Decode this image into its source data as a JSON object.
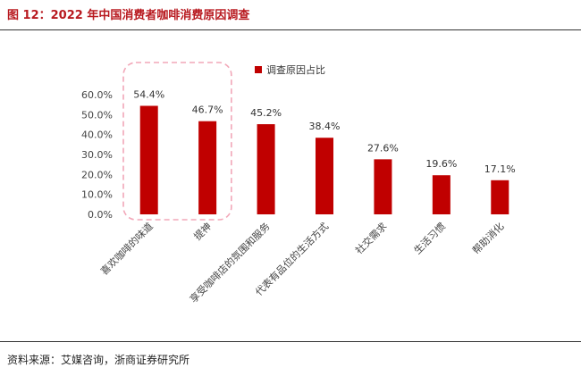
{
  "figure": {
    "title": "图 12：2022 年中国消费者咖啡消费原因调查",
    "source": "资料来源：艾媒咨询，浙商证券研究所"
  },
  "colors": {
    "bar": "#c00000",
    "title": "#b8191f",
    "highlight_box": "#f2a7b8"
  },
  "chart_data": {
    "type": "bar",
    "title": "",
    "xlabel": "",
    "ylabel": "",
    "categories": [
      "喜欢咖啡的味道",
      "提神",
      "享受咖啡店的氛围和服务",
      "代表有品位的生活方式",
      "社交需求",
      "生活习惯",
      "帮助消化"
    ],
    "series": [
      {
        "name": "调查原因占比",
        "values": [
          54.4,
          46.7,
          45.2,
          38.4,
          27.6,
          19.6,
          17.1
        ]
      }
    ],
    "value_labels": [
      "54.4%",
      "46.7%",
      "45.2%",
      "38.4%",
      "27.6%",
      "19.6%",
      "17.1%"
    ],
    "yticks": [
      0,
      10,
      20,
      30,
      40,
      50,
      60
    ],
    "ytick_labels": [
      "0.0%",
      "10.0%",
      "20.0%",
      "30.0%",
      "40.0%",
      "50.0%",
      "60.0%"
    ],
    "ylim": [
      0,
      60
    ],
    "grid": false,
    "legend_position": "top-right",
    "highlighted_categories": [
      0,
      1
    ]
  }
}
